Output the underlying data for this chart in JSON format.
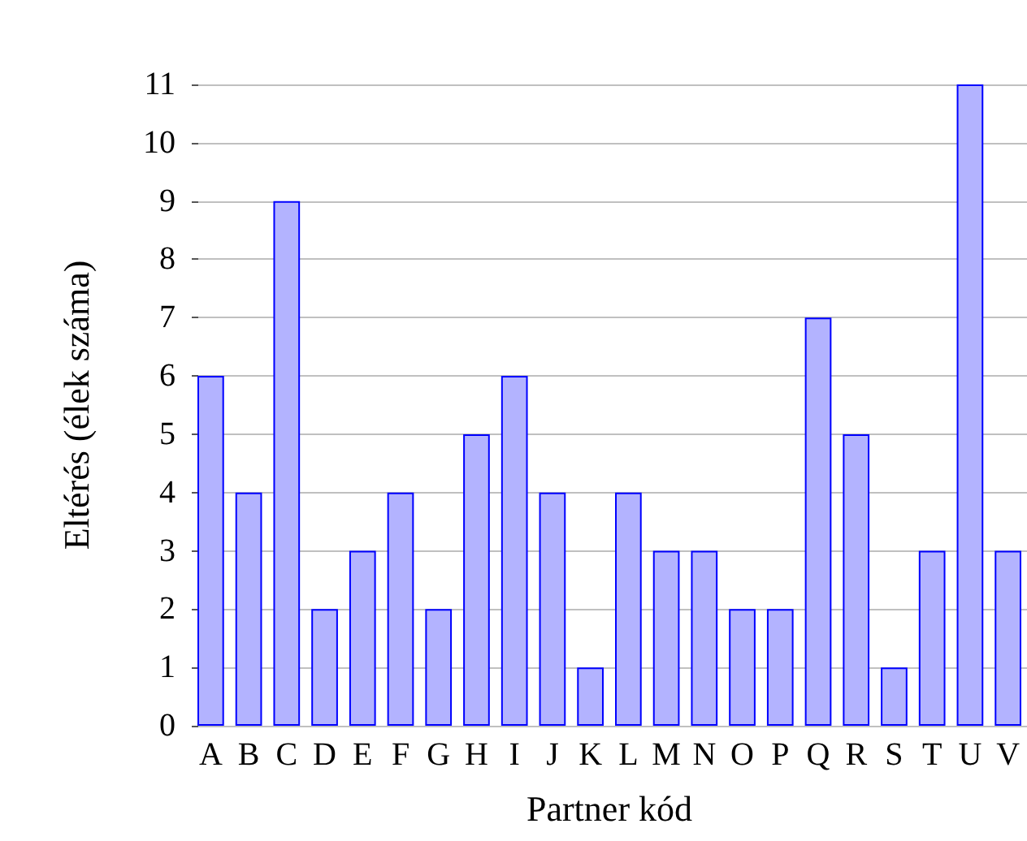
{
  "chart_data": {
    "type": "bar",
    "xlabel": "Partner kód",
    "ylabel": "Eltérés (élek száma)",
    "categories": [
      "A",
      "B",
      "C",
      "D",
      "E",
      "F",
      "G",
      "H",
      "I",
      "J",
      "K",
      "L",
      "M",
      "N",
      "O",
      "P",
      "Q",
      "R",
      "S",
      "T",
      "U",
      "V"
    ],
    "values": [
      6,
      4,
      9,
      2,
      3,
      4,
      2,
      5,
      6,
      4,
      1,
      4,
      3,
      3,
      2,
      2,
      7,
      5,
      1,
      3,
      11,
      3
    ],
    "color": "#b3b3ff",
    "ylim": [
      0,
      11
    ],
    "yticks": [
      0,
      1,
      2,
      3,
      4,
      5,
      6,
      7,
      8,
      9,
      10,
      11
    ],
    "grid": "y"
  }
}
